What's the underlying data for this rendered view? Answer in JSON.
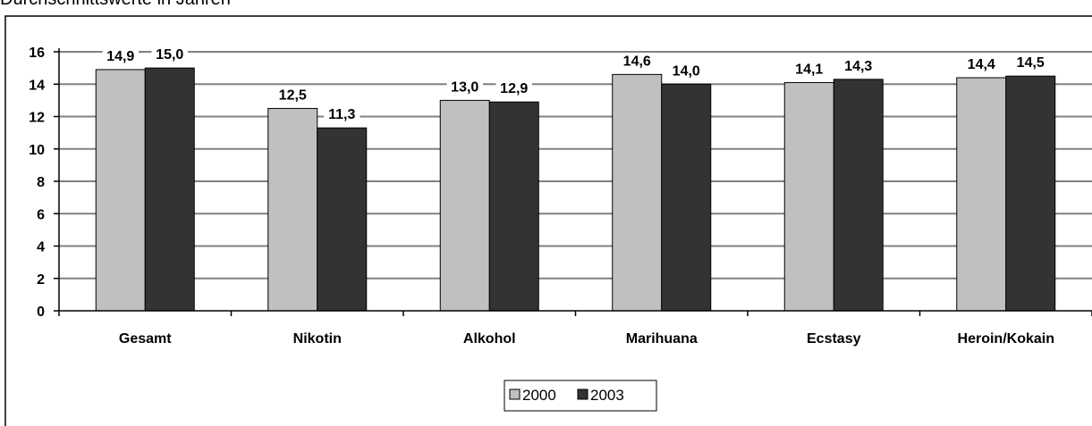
{
  "page": {
    "title": "Durchschnittswerte in Jahren"
  },
  "chart_data": {
    "type": "bar",
    "categories": [
      "Gesamt",
      "Nikotin",
      "Alkohol",
      "Marihuana",
      "Ecstasy",
      "Heroin/Kokain"
    ],
    "series": [
      {
        "name": "2000",
        "values": [
          14.9,
          12.5,
          13.0,
          14.6,
          14.1,
          14.4
        ],
        "labels": [
          "14,9",
          "12,5",
          "13,0",
          "14,6",
          "14,1",
          "14,4"
        ],
        "color": "#c0c0c0"
      },
      {
        "name": "2003",
        "values": [
          15.0,
          11.3,
          12.9,
          14.0,
          14.3,
          14.5
        ],
        "labels": [
          "15,0",
          "11,3",
          "12,9",
          "14,0",
          "14,3",
          "14,5"
        ],
        "color": "#333333"
      }
    ],
    "yticks": [
      "0",
      "2",
      "4",
      "6",
      "8",
      "10",
      "12",
      "14",
      "16"
    ],
    "ylim": [
      0,
      16
    ],
    "grid": true,
    "legend_position": "bottom"
  }
}
